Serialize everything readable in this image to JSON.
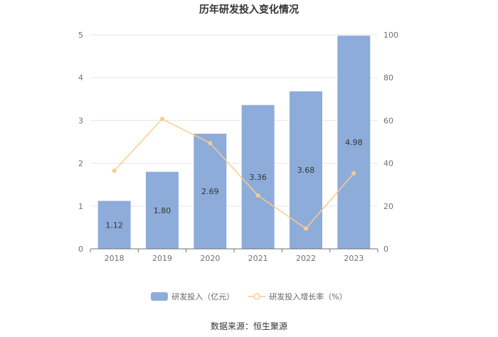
{
  "title": "历年研发投入变化情况",
  "source": "数据来源：恒生聚源",
  "colors": {
    "bar": "#8eacda",
    "line": "#f9cc8a",
    "grid": "#e6e6e6",
    "axis": "#6e7079"
  },
  "legend": {
    "bar_label": "研发投入（亿元）",
    "line_label": "研发投入增长率（%）"
  },
  "chart_data": {
    "type": "bar",
    "categories": [
      "2018",
      "2019",
      "2020",
      "2021",
      "2022",
      "2023"
    ],
    "series": [
      {
        "name": "研发投入（亿元）",
        "type": "bar",
        "axis": "left",
        "values": [
          1.12,
          1.8,
          2.69,
          3.36,
          3.68,
          4.98
        ],
        "labels": [
          "1.12",
          "1.80",
          "2.69",
          "3.36",
          "3.68",
          "4.98"
        ]
      },
      {
        "name": "研发投入增长率（%）",
        "type": "line",
        "axis": "right",
        "values": [
          36.5,
          60.7,
          49.4,
          24.9,
          9.5,
          35.3
        ]
      }
    ],
    "y_left": {
      "range": [
        0,
        5
      ],
      "ticks": [
        "0",
        "1",
        "2",
        "3",
        "4",
        "5"
      ]
    },
    "y_right": {
      "range": [
        0,
        100
      ],
      "ticks": [
        "0",
        "20",
        "40",
        "60",
        "80",
        "100"
      ]
    },
    "grid": true,
    "legend_position": "bottom"
  }
}
